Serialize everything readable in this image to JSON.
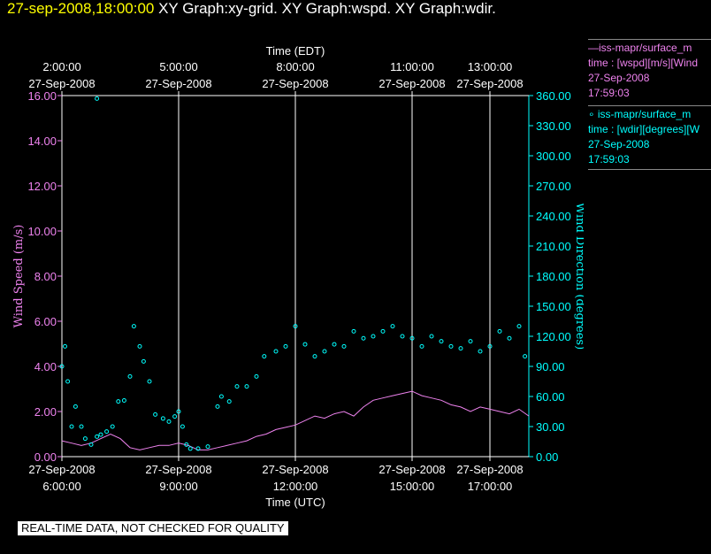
{
  "header": {
    "timestamp": "27-sep-2008,18:00:00",
    "graphs": "XY Graph:xy-grid.  XY Graph:wspd.  XY Graph:wdir."
  },
  "legend": {
    "wspd": {
      "line1": "iss-mapr/surface_m",
      "line2": "time : [wspd][m/s][Wind",
      "line3": "27-Sep-2008",
      "line4": "17:59:03",
      "color": "#ee82ee"
    },
    "wdir": {
      "line1": "iss-mapr/surface_m",
      "line2": "time : [wdir][degrees][W",
      "line3": "27-Sep-2008",
      "line4": "17:59:03",
      "color": "#00ffff"
    }
  },
  "quality_banner": "REAL-TIME DATA, NOT CHECKED FOR QUALITY",
  "chart_data": {
    "type": "line",
    "xlabel_bottom": "Time (UTC)",
    "xlabel_top": "Time (EDT)",
    "ylabel_left": "Wind Speed (m/s)",
    "ylabel_right": "Wind Direction (degrees)",
    "x_unit": "hours UTC on 27-Sep-2008",
    "xlim": [
      6.0,
      18.0
    ],
    "ylim_left": [
      0,
      16
    ],
    "ylim_right": [
      0,
      360
    ],
    "grid": "vertical lines at top time ticks",
    "bottom_ticks": [
      {
        "x": 6.0,
        "date": "27-Sep-2008",
        "time": "6:00:00"
      },
      {
        "x": 9.0,
        "date": "27-Sep-2008",
        "time": "9:00:00"
      },
      {
        "x": 12.0,
        "date": "27-Sep-2008",
        "time": "12:00:00"
      },
      {
        "x": 15.0,
        "date": "27-Sep-2008",
        "time": "15:00:00"
      },
      {
        "x": 17.0,
        "date": "27-Sep-2008",
        "time": "17:00:00"
      }
    ],
    "top_ticks": [
      {
        "x": 6.0,
        "time": "2:00:00",
        "date": "27-Sep-2008"
      },
      {
        "x": 9.0,
        "time": "5:00:00",
        "date": "27-Sep-2008"
      },
      {
        "x": 12.0,
        "time": "8:00:00",
        "date": "27-Sep-2008"
      },
      {
        "x": 15.0,
        "time": "11:00:00",
        "date": "27-Sep-2008"
      },
      {
        "x": 17.0,
        "time": "13:00:00",
        "date": "27-Sep-2008"
      }
    ],
    "left_ticks": [
      "0.00",
      "2.00",
      "4.00",
      "6.00",
      "8.00",
      "10.00",
      "12.00",
      "14.00",
      "16.00"
    ],
    "right_ticks": [
      "0.00",
      "30.00",
      "60.00",
      "90.00",
      "120.00",
      "150.00",
      "180.00",
      "210.00",
      "240.00",
      "270.00",
      "300.00",
      "330.00",
      "360.00"
    ],
    "series": [
      {
        "name": "wspd",
        "kind": "line",
        "axis": "left",
        "color": "#ee82ee",
        "x": [
          6.0,
          6.25,
          6.5,
          6.75,
          7.0,
          7.25,
          7.5,
          7.75,
          8.0,
          8.25,
          8.5,
          8.75,
          9.0,
          9.25,
          9.5,
          9.75,
          10.0,
          10.25,
          10.5,
          10.75,
          11.0,
          11.25,
          11.5,
          11.75,
          12.0,
          12.25,
          12.5,
          12.75,
          13.0,
          13.25,
          13.5,
          13.75,
          14.0,
          14.25,
          14.5,
          14.75,
          15.0,
          15.25,
          15.5,
          15.75,
          16.0,
          16.25,
          16.5,
          16.75,
          17.0,
          17.25,
          17.5,
          17.75,
          18.0
        ],
        "y": [
          0.7,
          0.6,
          0.5,
          0.6,
          0.8,
          1.0,
          0.8,
          0.4,
          0.3,
          0.4,
          0.5,
          0.5,
          0.6,
          0.5,
          0.3,
          0.3,
          0.4,
          0.5,
          0.6,
          0.7,
          0.9,
          1.0,
          1.2,
          1.3,
          1.4,
          1.6,
          1.8,
          1.7,
          1.9,
          2.0,
          1.8,
          2.2,
          2.5,
          2.6,
          2.7,
          2.8,
          2.9,
          2.7,
          2.6,
          2.5,
          2.3,
          2.2,
          2.0,
          2.2,
          2.1,
          2.0,
          1.9,
          2.1,
          1.8
        ]
      },
      {
        "name": "wdir",
        "kind": "scatter",
        "axis": "right",
        "color": "#00ffff",
        "x": [
          6.0,
          6.08,
          6.15,
          6.25,
          6.35,
          6.5,
          6.6,
          6.75,
          6.9,
          7.0,
          7.15,
          7.3,
          7.45,
          7.6,
          7.75,
          7.85,
          8.0,
          8.1,
          8.25,
          8.4,
          8.6,
          8.75,
          8.9,
          9.0,
          9.1,
          9.2,
          9.3,
          9.5,
          9.75,
          10.0,
          10.1,
          10.3,
          10.5,
          10.75,
          11.0,
          11.2,
          11.5,
          11.75,
          12.0,
          12.25,
          12.5,
          12.75,
          13.0,
          13.25,
          13.5,
          13.75,
          14.0,
          14.25,
          14.5,
          14.75,
          15.0,
          15.25,
          15.5,
          15.75,
          16.0,
          16.25,
          16.5,
          16.75,
          17.0,
          17.25,
          17.5,
          17.75,
          17.9,
          6.9
        ],
        "y": [
          90,
          110,
          75,
          30,
          50,
          30,
          18,
          12,
          20,
          22,
          25,
          30,
          55,
          56,
          80,
          130,
          110,
          95,
          75,
          42,
          38,
          35,
          40,
          45,
          30,
          12,
          8,
          8,
          10,
          50,
          60,
          55,
          70,
          70,
          80,
          100,
          105,
          110,
          130,
          112,
          100,
          105,
          112,
          110,
          125,
          118,
          120,
          125,
          130,
          120,
          118,
          110,
          120,
          115,
          110,
          108,
          115,
          105,
          110,
          125,
          118,
          130,
          100,
          357
        ]
      }
    ]
  }
}
